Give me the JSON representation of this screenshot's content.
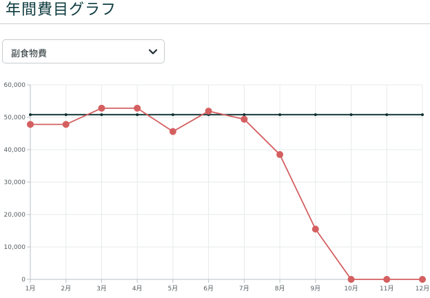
{
  "page": {
    "title": "年間費目グラフ"
  },
  "category_select": {
    "selected": "副食物費",
    "icon": "chevron-down-icon"
  },
  "colors": {
    "series": "#d45f60",
    "reference_line": "#0f3232",
    "grid": "#e6e9eb",
    "axis": "#b9bfc3"
  },
  "chart_data": {
    "type": "line",
    "title": "",
    "xlabel": "",
    "ylabel": "",
    "categories": [
      "1月",
      "2月",
      "3月",
      "4月",
      "5月",
      "6月",
      "7月",
      "8月",
      "9月",
      "10月",
      "11月",
      "12月"
    ],
    "series": [
      {
        "name": "",
        "values": [
          47800,
          47800,
          52800,
          52800,
          45600,
          51900,
          49400,
          38500,
          15500,
          0,
          0,
          0
        ]
      }
    ],
    "reference_line": {
      "value": 50800
    },
    "y_ticks": [
      "0",
      "10,000",
      "20,000",
      "30,000",
      "40,000",
      "50,000",
      "60,000"
    ],
    "ylim": [
      0,
      60000
    ],
    "grid": true,
    "legend": "none"
  }
}
